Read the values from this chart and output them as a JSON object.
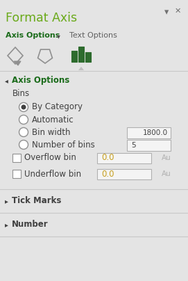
{
  "title": "Format Axis",
  "title_color": "#6aaa1a",
  "bg_color": "#e4e4e4",
  "title_bar_bg": "#e4e4e4",
  "tab_bar_bg": "#e4e4e4",
  "icon_bar_bg": "#e4e4e4",
  "axis_options_label": "Axis Options",
  "axis_options_color": "#1a6b1a",
  "text_options_label": "Text Options",
  "section_header": "Axis Options",
  "section_color": "#1a6b1a",
  "icon_green": "#2d6b2d",
  "bins_label": "Bins",
  "radio_options": [
    "By Category",
    "Automatic",
    "Bin width",
    "Number of bins"
  ],
  "radio_selected": 0,
  "bin_width_value": "1800.0",
  "num_bins_value": "5",
  "overflow_label": "Overflow bin",
  "overflow_value": "0.0",
  "underflow_label": "Underflow bin",
  "underflow_value": "0.0",
  "collapsed_sections": [
    "Tick Marks",
    "Number"
  ],
  "input_bg": "#f4f4f4",
  "input_border": "#b0b0b0",
  "value_color": "#c8a020",
  "gray_text": "#b0b0b0",
  "dark_text": "#404040",
  "mid_text": "#606060",
  "separator_color": "#c8c8c8",
  "radio_border": "#909090",
  "radio_fill": "#ffffff",
  "radio_dot": "#404040",
  "checkbox_border": "#909090",
  "checkbox_fill": "#ffffff",
  "tab_indicator_color": "#e4e4e4",
  "upward_triangle_color": "#c0c0c0"
}
